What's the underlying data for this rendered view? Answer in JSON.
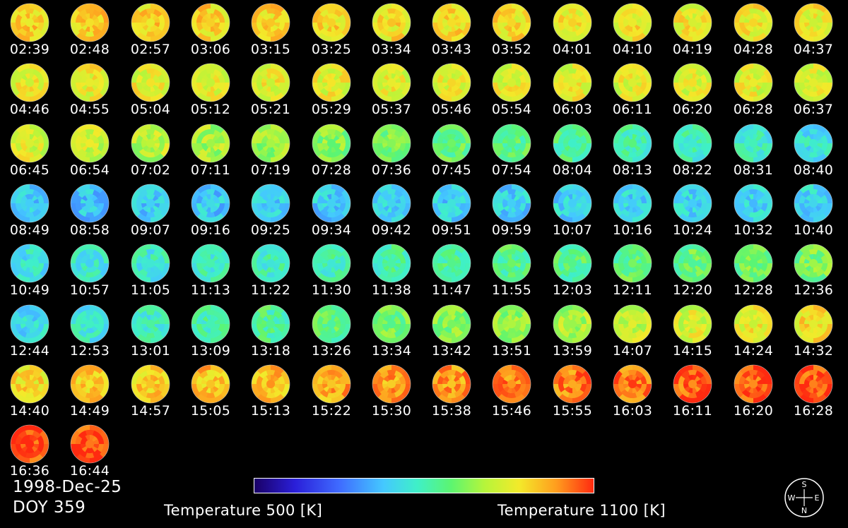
{
  "times": [
    "02:39",
    "02:48",
    "02:57",
    "03:06",
    "03:15",
    "03:25",
    "03:34",
    "03:43",
    "03:52",
    "04:01",
    "04:10",
    "04:19",
    "04:28",
    "04:37",
    "04:46",
    "04:55",
    "05:04",
    "05:12",
    "05:21",
    "05:29",
    "05:37",
    "05:46",
    "05:54",
    "06:03",
    "06:11",
    "06:20",
    "06:28",
    "06:37",
    "06:45",
    "06:54",
    "07:02",
    "07:11",
    "07:19",
    "07:28",
    "07:36",
    "07:45",
    "07:54",
    "08:04",
    "08:13",
    "08:22",
    "08:31",
    "08:40",
    "08:49",
    "08:58",
    "09:07",
    "09:16",
    "09:25",
    "09:34",
    "09:42",
    "09:51",
    "09:59",
    "10:07",
    "10:16",
    "10:24",
    "10:32",
    "10:40",
    "10:49",
    "10:57",
    "11:05",
    "11:13",
    "11:22",
    "11:30",
    "11:38",
    "11:47",
    "11:55",
    "12:03",
    "12:11",
    "12:20",
    "12:28",
    "12:36",
    "12:44",
    "12:53",
    "13:01",
    "13:09",
    "13:18",
    "13:26",
    "13:34",
    "13:42",
    "13:51",
    "13:59",
    "14:07",
    "14:15",
    "14:24",
    "14:32",
    "14:40",
    "14:49",
    "14:57",
    "15:05",
    "15:13",
    "15:22",
    "15:30",
    "15:38",
    "15:46",
    "15:55",
    "16:03",
    "16:11",
    "16:20",
    "16:28",
    "16:36",
    "16:44"
  ],
  "date_label": "1998-Dec-25",
  "doy_label": "DOY 359",
  "colorbar": {
    "min_label": "Temperature 500 [K]",
    "max_label": "Temperature 1100 [K]",
    "min_value": 500,
    "max_value": 1100,
    "unit": "K",
    "colors": [
      "#1a0066",
      "#2a1fd9",
      "#3f6bff",
      "#44c8ff",
      "#3ff0c8",
      "#5cf570",
      "#b7f53a",
      "#f3ea2a",
      "#ff9d1e",
      "#ff2a10"
    ]
  },
  "compass": {
    "north": "N",
    "south": "S",
    "east": "E",
    "west": "W"
  }
}
